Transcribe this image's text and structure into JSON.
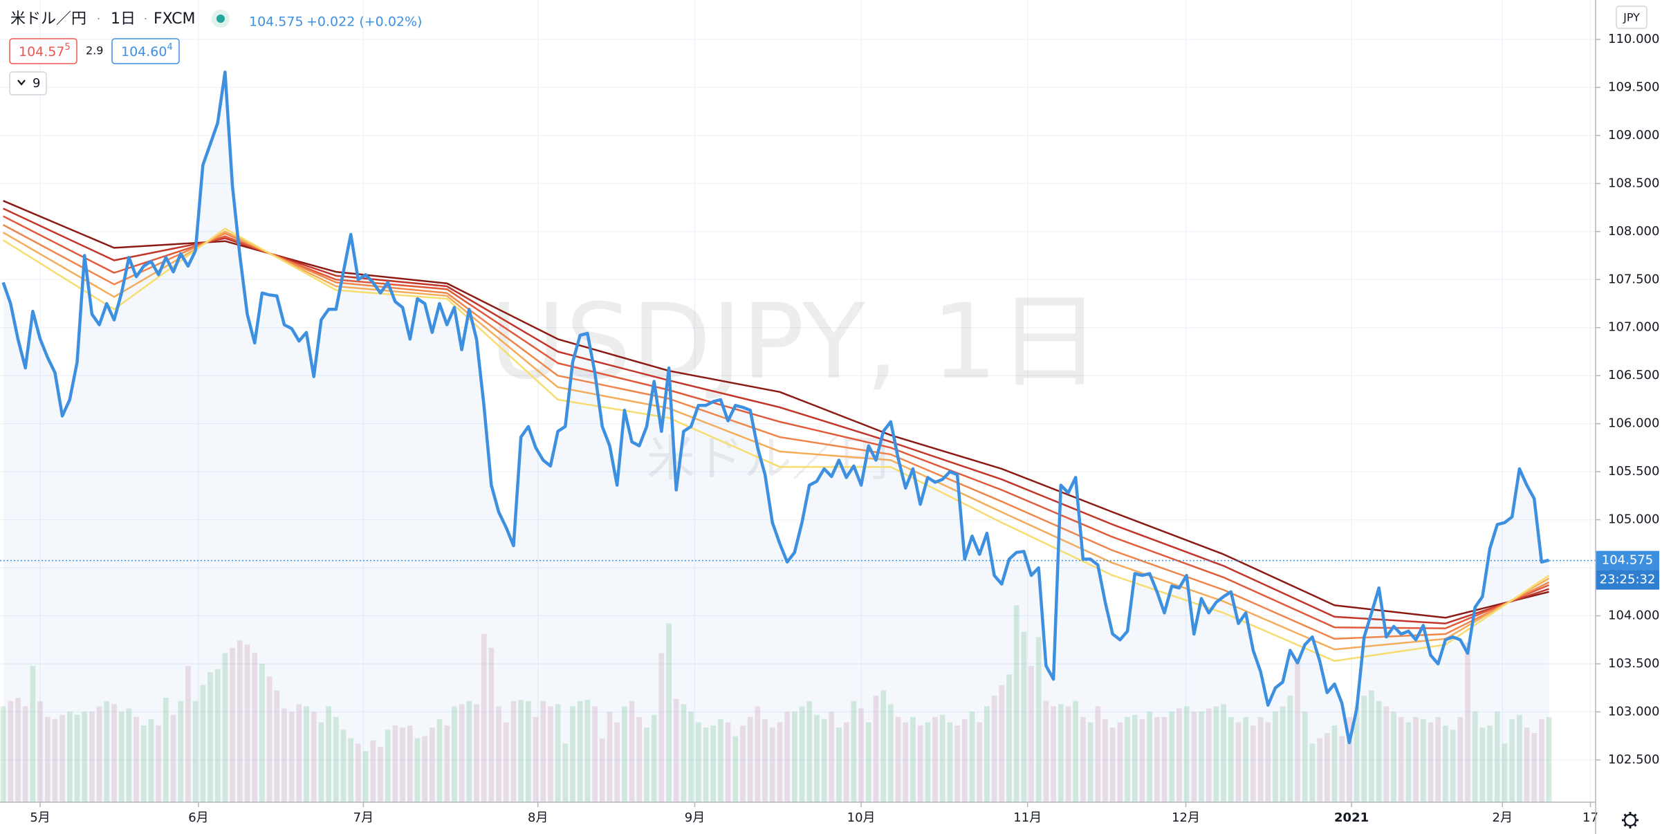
{
  "header": {
    "symbol": "米ドル／円",
    "interval": "1日",
    "source": "FXCM",
    "quote": "104.575",
    "change": "+0.022 (+0.02%)",
    "bid": {
      "main": "104.57",
      "sup": "5"
    },
    "spread": "2.9",
    "ask": {
      "main": "104.60",
      "sup": "4"
    },
    "indicator_count": "9",
    "currency": "JPY"
  },
  "watermark": {
    "title": "USDJPY, 1日",
    "subtitle": "米ドル／円"
  },
  "chart_data": {
    "type": "line",
    "color": "#3d8fe0",
    "values": [
      107.47,
      107.25,
      106.88,
      106.58,
      107.17,
      106.88,
      106.69,
      106.53,
      106.08,
      106.25,
      106.64,
      107.75,
      107.14,
      107.03,
      107.25,
      107.08,
      107.36,
      107.73,
      107.53,
      107.64,
      107.69,
      107.55,
      107.73,
      107.58,
      107.77,
      107.64,
      107.8,
      108.69,
      108.91,
      109.13,
      109.66,
      108.47,
      107.75,
      107.14,
      106.84,
      107.36,
      107.34,
      107.33,
      107.03,
      106.99,
      106.86,
      106.95,
      106.49,
      107.08,
      107.19,
      107.19,
      107.58,
      107.97,
      107.5,
      107.55,
      107.47,
      107.36,
      107.47,
      107.27,
      107.21,
      106.88,
      107.3,
      107.25,
      106.95,
      107.25,
      107.03,
      107.21,
      106.77,
      107.19,
      106.88,
      106.19,
      105.36,
      105.08,
      104.92,
      104.73,
      105.86,
      105.97,
      105.75,
      105.62,
      105.56,
      105.92,
      105.97,
      106.64,
      106.92,
      106.94,
      106.53,
      105.97,
      105.77,
      105.36,
      106.14,
      105.81,
      105.77,
      105.97,
      106.44,
      105.92,
      106.58,
      105.31,
      105.92,
      105.97,
      106.19,
      106.19,
      106.23,
      106.25,
      106.03,
      106.19,
      106.17,
      106.14,
      105.75,
      105.47,
      104.97,
      104.75,
      104.56,
      104.66,
      104.97,
      105.36,
      105.4,
      105.53,
      105.45,
      105.62,
      105.44,
      105.56,
      105.36,
      105.77,
      105.62,
      105.92,
      106.02,
      105.64,
      105.33,
      105.53,
      105.16,
      105.44,
      105.39,
      105.42,
      105.5,
      105.47,
      104.59,
      104.83,
      104.64,
      104.86,
      104.42,
      104.33,
      104.59,
      104.66,
      104.67,
      104.42,
      104.5,
      103.48,
      103.34,
      105.36,
      105.28,
      105.44,
      104.59,
      104.59,
      104.53,
      104.14,
      103.81,
      103.75,
      103.84,
      104.44,
      104.42,
      104.44,
      104.25,
      104.03,
      104.31,
      104.29,
      104.42,
      103.81,
      104.18,
      104.03,
      104.14,
      104.2,
      104.25,
      103.92,
      104.03,
      103.64,
      103.42,
      103.07,
      103.25,
      103.31,
      103.64,
      103.51,
      103.7,
      103.78,
      103.53,
      103.2,
      103.29,
      103.09,
      102.68,
      103.03,
      103.78,
      104.03,
      104.29,
      103.78,
      103.89,
      103.81,
      103.84,
      103.75,
      103.9,
      103.59,
      103.5,
      103.75,
      103.78,
      103.75,
      103.61,
      104.09,
      104.2,
      104.7,
      104.95,
      104.97,
      105.03,
      105.53,
      105.36,
      105.22,
      104.56,
      104.58
    ],
    "ribbon": {
      "x": [
        0,
        15,
        30,
        45,
        60,
        75,
        90,
        105,
        120,
        135,
        150,
        165,
        180,
        195,
        209
      ],
      "series": [
        {
          "color": "#8b1a12",
          "values": [
            108.32,
            107.83,
            107.9,
            107.58,
            107.46,
            106.88,
            106.55,
            106.33,
            105.88,
            105.53,
            105.08,
            104.64,
            104.11,
            103.98,
            104.25
          ]
        },
        {
          "color": "#c2362a",
          "values": [
            108.24,
            107.7,
            107.93,
            107.54,
            107.43,
            106.75,
            106.45,
            106.17,
            105.81,
            105.42,
            104.95,
            104.52,
            103.99,
            103.92,
            104.28
          ]
        },
        {
          "color": "#e05a3a",
          "values": [
            108.16,
            107.57,
            107.95,
            107.5,
            107.4,
            106.63,
            106.35,
            106.02,
            105.75,
            105.31,
            104.82,
            104.4,
            103.88,
            103.87,
            104.32
          ]
        },
        {
          "color": "#f0854a",
          "values": [
            108.07,
            107.45,
            107.98,
            107.47,
            107.36,
            106.5,
            106.26,
            105.86,
            105.68,
            105.19,
            104.68,
            104.27,
            103.76,
            103.81,
            104.35
          ]
        },
        {
          "color": "#f5ac5a",
          "values": [
            107.99,
            107.32,
            108.0,
            107.43,
            107.33,
            106.38,
            106.16,
            105.71,
            105.62,
            105.08,
            104.55,
            104.15,
            103.65,
            103.76,
            104.39
          ]
        },
        {
          "color": "#f7dc6f",
          "values": [
            107.91,
            107.19,
            108.03,
            107.39,
            107.3,
            106.25,
            106.06,
            105.55,
            105.55,
            104.97,
            104.42,
            104.03,
            103.53,
            103.7,
            104.42
          ]
        }
      ]
    },
    "volume": {
      "vlim": [
        0,
        250
      ],
      "up_color": "rgba(120,190,140,0.28)",
      "down_color": "rgba(210,150,170,0.28)",
      "values": [
        90,
        95,
        98,
        90,
        128,
        95,
        80,
        78,
        82,
        85,
        82,
        85,
        85,
        90,
        95,
        92,
        85,
        88,
        80,
        72,
        78,
        72,
        98,
        82,
        95,
        128,
        95,
        110,
        122,
        125,
        140,
        145,
        152,
        148,
        140,
        130,
        118,
        105,
        88,
        85,
        92,
        90,
        85,
        75,
        90,
        80,
        68,
        60,
        55,
        48,
        58,
        52,
        68,
        72,
        70,
        72,
        60,
        62,
        70,
        78,
        72,
        90,
        92,
        95,
        92,
        158,
        145,
        90,
        75,
        95,
        96,
        95,
        80,
        95,
        90,
        92,
        55,
        90,
        95,
        96,
        90,
        60,
        85,
        75,
        90,
        95,
        80,
        70,
        82,
        140,
        168,
        97,
        92,
        85,
        75,
        70,
        72,
        78,
        75,
        62,
        72,
        80,
        90,
        78,
        70,
        75,
        85,
        85,
        90,
        95,
        82,
        78,
        85,
        70,
        75,
        95,
        88,
        75,
        100,
        105,
        92,
        80,
        75,
        80,
        72,
        75,
        80,
        82,
        75,
        72,
        78,
        85,
        75,
        90,
        100,
        110,
        120,
        185,
        160,
        128,
        155,
        95,
        90,
        92,
        90,
        95,
        80,
        75,
        90,
        78,
        70,
        75,
        80,
        82,
        78,
        85,
        80,
        80,
        85,
        88,
        90,
        85,
        85,
        88,
        90,
        92,
        80,
        75,
        80,
        72,
        80,
        75,
        85,
        90,
        100,
        135,
        85,
        55,
        60,
        65,
        72,
        62,
        80,
        90,
        100,
        105,
        95,
        90,
        85,
        80,
        75,
        80,
        78,
        75,
        80,
        72,
        68,
        80,
        150,
        85,
        70,
        72,
        85,
        55,
        78,
        82,
        70,
        65,
        78,
        80
      ]
    },
    "xlim": [
      -0.43,
      215.3
    ],
    "xticks": [
      {
        "value": 5,
        "label": "5月"
      },
      {
        "value": 26.4,
        "label": "6月"
      },
      {
        "value": 48.7,
        "label": "7月"
      },
      {
        "value": 72.3,
        "label": "8月"
      },
      {
        "value": 93.5,
        "label": "9月"
      },
      {
        "value": 116,
        "label": "10月"
      },
      {
        "value": 138.5,
        "label": "11月"
      },
      {
        "value": 159.9,
        "label": "12月"
      },
      {
        "value": 182.3,
        "label": "2021"
      },
      {
        "value": 202.7,
        "label": "2月"
      },
      {
        "value": 214.6,
        "label": "17"
      }
    ],
    "ylim": [
      102.06,
      110.41
    ],
    "yticks": [
      {
        "value": 102.5,
        "label": "102.500"
      },
      {
        "value": 103,
        "label": "103.000"
      },
      {
        "value": 103.5,
        "label": "103.500"
      },
      {
        "value": 104,
        "label": "104.000"
      },
      {
        "value": 104.5,
        "label": "104.500"
      },
      {
        "value": 105,
        "label": "105.000"
      },
      {
        "value": 105.5,
        "label": "105.500"
      },
      {
        "value": 106,
        "label": "106.000"
      },
      {
        "value": 106.5,
        "label": "106.500"
      },
      {
        "value": 107,
        "label": "107.000"
      },
      {
        "value": 107.5,
        "label": "107.500"
      },
      {
        "value": 108,
        "label": "108.000"
      },
      {
        "value": 108.5,
        "label": "108.500"
      },
      {
        "value": 109,
        "label": "109.000"
      },
      {
        "value": 109.5,
        "label": "109.500"
      },
      {
        "value": 110,
        "label": "110.000"
      }
    ],
    "grid": true,
    "last_price": 104.575,
    "countdown": "23:25:32"
  }
}
